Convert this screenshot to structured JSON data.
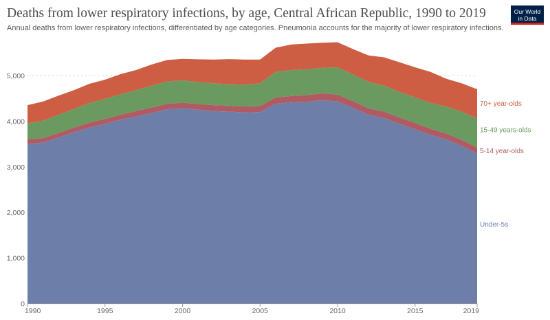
{
  "header": {
    "title": "Deaths from lower respiratory infections, by age, Central African Republic, 1990 to 2019",
    "subtitle": "Annual deaths from lower respiratory infections, differentiated by age categories. Pneumonia accounts for the majority of lower respiratory infections.",
    "logo_line1": "Our World",
    "logo_line2": "in Data"
  },
  "colors": {
    "under5": "#6d7fa9",
    "age5_14": "#b05b63",
    "age15_49": "#6a9a5f",
    "age70plus": "#cd5e44",
    "logo_bg": "#002147",
    "logo_accent": "#ce261e"
  },
  "chart_data": {
    "type": "area",
    "stacked": true,
    "x": [
      1990,
      1991,
      1992,
      1993,
      1994,
      1995,
      1996,
      1997,
      1998,
      1999,
      2000,
      2001,
      2002,
      2003,
      2004,
      2005,
      2006,
      2007,
      2008,
      2009,
      2010,
      2011,
      2012,
      2013,
      2014,
      2015,
      2016,
      2017,
      2018,
      2019
    ],
    "x_ticks": [
      "1990",
      "1995",
      "2000",
      "2005",
      "2010",
      "2015",
      "2019"
    ],
    "y_ticks": [
      "0",
      "1,000",
      "2,000",
      "3,000",
      "4,000",
      "5,000"
    ],
    "ylim": [
      0,
      5500
    ],
    "grid": true,
    "series": [
      {
        "name": "Under-5s",
        "key": "under5",
        "values": [
          3500,
          3530,
          3640,
          3760,
          3860,
          3940,
          4030,
          4100,
          4180,
          4260,
          4280,
          4250,
          4220,
          4210,
          4190,
          4200,
          4380,
          4410,
          4420,
          4460,
          4430,
          4290,
          4140,
          4070,
          3940,
          3820,
          3700,
          3600,
          3460,
          3290
        ]
      },
      {
        "name": "5-14 year-olds",
        "key": "age5_14",
        "values": [
          100,
          100,
          100,
          100,
          110,
          110,
          110,
          120,
          120,
          120,
          125,
          125,
          130,
          130,
          130,
          130,
          140,
          140,
          150,
          150,
          150,
          150,
          140,
          140,
          140,
          140,
          130,
          130,
          130,
          130
        ]
      },
      {
        "name": "15-49 years-olds",
        "key": "age15_49",
        "values": [
          350,
          380,
          400,
          410,
          430,
          440,
          450,
          460,
          480,
          490,
          490,
          480,
          480,
          470,
          480,
          500,
          560,
          570,
          570,
          560,
          600,
          580,
          580,
          570,
          560,
          560,
          570,
          590,
          620,
          640
        ]
      },
      {
        "name": "70+ year-olds",
        "key": "age70plus",
        "values": [
          400,
          420,
          420,
          410,
          420,
          420,
          440,
          440,
          460,
          470,
          470,
          500,
          520,
          550,
          550,
          520,
          530,
          560,
          560,
          550,
          550,
          560,
          580,
          620,
          650,
          660,
          680,
          610,
          620,
          640
        ]
      }
    ]
  }
}
